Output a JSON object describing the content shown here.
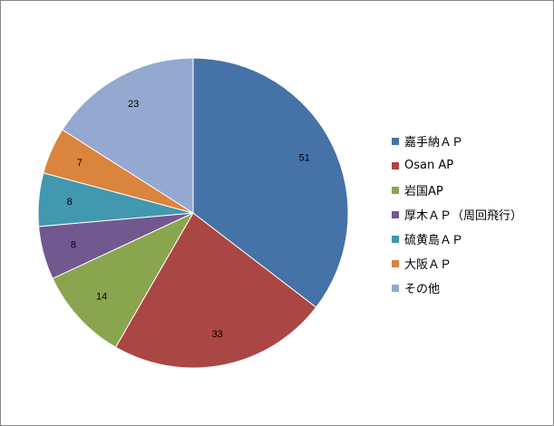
{
  "chart_data": {
    "type": "pie",
    "title": "",
    "categories": [
      "嘉手納ＡＰ",
      "Osan AP",
      "岩国AP",
      "厚木ＡＰ（周回飛行）",
      "硫黄島ＡＰ",
      "大阪ＡＰ",
      "その他"
    ],
    "values": [
      51,
      33,
      14,
      8,
      8,
      7,
      23
    ],
    "colors": [
      "#4572A7",
      "#AA4643",
      "#89A54E",
      "#71588F",
      "#4198AF",
      "#DB843D",
      "#93A9CF"
    ],
    "legend_position": "right",
    "start_angle": "top, clockwise"
  }
}
